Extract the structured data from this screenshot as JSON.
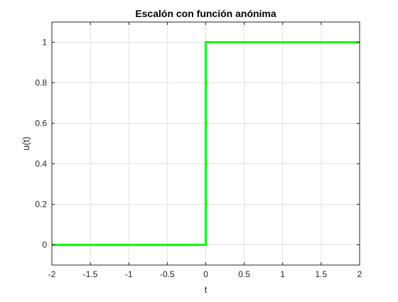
{
  "chart_data": {
    "type": "line",
    "title": "Escalón con función anónima",
    "xlabel": "t",
    "ylabel": "u(t)",
    "xlim": [
      -2,
      2
    ],
    "ylim": [
      -0.1,
      1.1
    ],
    "xticks": [
      -2,
      -1.5,
      -1,
      -0.5,
      0,
      0.5,
      1,
      1.5,
      2
    ],
    "xtick_labels": [
      "-2",
      "-1.5",
      "-1",
      "-0.5",
      "0",
      "0.5",
      "1",
      "1.5",
      "2"
    ],
    "yticks": [
      0,
      0.2,
      0.4,
      0.6,
      0.8,
      1
    ],
    "ytick_labels": [
      "0",
      "0.2",
      "0.4",
      "0.6",
      "0.8",
      "1"
    ],
    "grid": true,
    "series": [
      {
        "color": "#00ff00",
        "x": [
          -2,
          0,
          0,
          2
        ],
        "y": [
          0,
          0,
          1,
          1
        ]
      }
    ]
  }
}
